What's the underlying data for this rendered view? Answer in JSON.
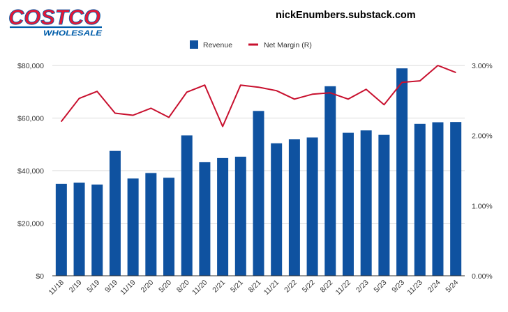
{
  "brand": {
    "logo_name": "COSTCO",
    "logo_sub": "WHOLESALE",
    "logo_colors": {
      "red": "#E31837",
      "blue": "#005DAA"
    }
  },
  "source": "nickEnumbers.substack.com",
  "chart_data": {
    "type": "bar",
    "categories": [
      "11/18",
      "2/19",
      "5/19",
      "9/19",
      "11/19",
      "2/20",
      "5/20",
      "8/20",
      "11/20",
      "2/21",
      "5/21",
      "8/21",
      "11/21",
      "2/22",
      "5/22",
      "8/22",
      "11/22",
      "2/23",
      "5/23",
      "9/23",
      "11/23",
      "2/24",
      "5/24"
    ],
    "series": [
      {
        "name": "Revenue",
        "type": "bar",
        "axis": "left",
        "color": "#0F52A0",
        "values": [
          35000,
          35400,
          34700,
          47500,
          37000,
          39100,
          37300,
          53400,
          43200,
          44800,
          45300,
          62700,
          50400,
          51900,
          52600,
          72100,
          54400,
          55300,
          53600,
          78900,
          57800,
          58400,
          58500
        ]
      },
      {
        "name": "Net Margin (R)",
        "type": "line",
        "axis": "right",
        "color": "#C8102E",
        "values": [
          2.2,
          2.53,
          2.63,
          2.32,
          2.29,
          2.39,
          2.26,
          2.62,
          2.72,
          2.13,
          2.72,
          2.69,
          2.64,
          2.52,
          2.59,
          2.61,
          2.52,
          2.66,
          2.44,
          2.76,
          2.78,
          3.0,
          2.9
        ]
      }
    ],
    "y_left": {
      "range": [
        0,
        80000
      ],
      "ticks": [
        "$0",
        "$20,000",
        "$40,000",
        "$60,000",
        "$80,000"
      ]
    },
    "y_right": {
      "range": [
        0,
        3
      ],
      "ticks": [
        "0.00%",
        "1.00%",
        "2.00%",
        "3.00%"
      ]
    },
    "grid": true,
    "legend": {
      "position": "top-center",
      "items": [
        "Revenue",
        "Net Margin (R)"
      ]
    }
  }
}
